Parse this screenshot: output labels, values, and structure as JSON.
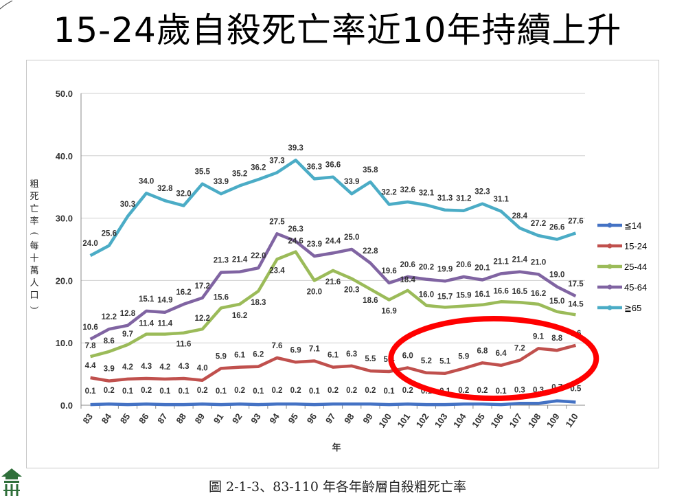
{
  "title": "15-24歲自殺死亡率近10年持續上升",
  "caption": "圖 2-1-3、83-110 年各年齡層自殺粗死亡率",
  "chart_data": {
    "type": "line",
    "xlabel": "年",
    "ylabel": "粗死亡率(每十萬人口)",
    "ylim": [
      0,
      50
    ],
    "yticks": [
      "0.0",
      "10.0",
      "20.0",
      "30.0",
      "40.0",
      "50.0"
    ],
    "grid": true,
    "legend_position": "right",
    "categories": [
      "83",
      "84",
      "85",
      "86",
      "87",
      "88",
      "89",
      "91",
      "92",
      "93",
      "94",
      "95",
      "96",
      "97",
      "98",
      "99",
      "100",
      "101",
      "102",
      "103",
      "104",
      "105",
      "106",
      "107",
      "108",
      "109",
      "110"
    ],
    "series": [
      {
        "name": "≦14",
        "color": "#4472C4",
        "values": [
          0.1,
          0.2,
          0.1,
          0.2,
          0.1,
          0.1,
          0.2,
          0.1,
          0.2,
          0.1,
          0.2,
          0.2,
          0.1,
          0.2,
          0.2,
          0.2,
          0.1,
          0.2,
          0.1,
          0.1,
          0.2,
          0.2,
          0.1,
          0.3,
          0.3,
          0.7,
          0.5
        ],
        "labels": [
          "0.1",
          "0.2",
          "0.1",
          "0.2",
          "0.1",
          "0.1",
          "0.2",
          "0.1",
          "0.2",
          "0.1",
          "0.2",
          "0.2",
          "0.1",
          "0.2",
          "0.2",
          "0.2",
          "0.1",
          "0.2",
          "0.1",
          "0.1",
          "0.2",
          "0.2",
          "0.1",
          "0.3",
          "0.3",
          "0.7",
          "0.5"
        ]
      },
      {
        "name": "15-24",
        "color": "#C0504D",
        "values": [
          4.4,
          3.9,
          4.2,
          4.3,
          4.2,
          4.3,
          4.0,
          5.9,
          6.1,
          6.2,
          7.6,
          6.9,
          7.1,
          6.1,
          6.3,
          5.5,
          5.4,
          6.0,
          5.2,
          5.1,
          5.9,
          6.8,
          6.4,
          7.2,
          9.1,
          8.8,
          9.6
        ],
        "labels": [
          "4.4",
          "3.9",
          "4.2",
          "4.3",
          "4.2",
          "4.3",
          "4.0",
          "5.9",
          "6.1",
          "6.2",
          "7.6",
          "6.9",
          "7.1",
          "6.1",
          "6.3",
          "5.5",
          "5.4",
          "6.0",
          "5.2",
          "5.1",
          "5.9",
          "6.8",
          "6.4",
          "7.2",
          "9.1",
          "8.8",
          "9.6"
        ]
      },
      {
        "name": "25-44",
        "color": "#9BBB59",
        "values": [
          7.8,
          8.6,
          9.7,
          11.4,
          11.4,
          11.6,
          12.2,
          15.6,
          16.2,
          18.3,
          23.4,
          24.6,
          20.0,
          21.6,
          20.3,
          18.6,
          16.9,
          18.4,
          16.0,
          15.7,
          15.9,
          16.1,
          16.6,
          16.5,
          16.2,
          15.0,
          14.5
        ],
        "labels": [
          "7.8",
          "8.6",
          "9.7",
          "11.4",
          "11.4",
          "11.6",
          "12.2",
          "15.6",
          "16.2",
          "18.3",
          "23.4",
          "24.6",
          "20.0",
          "21.6",
          "20.3",
          "18.6",
          "16.9",
          "18.4",
          "16.0",
          "15.7",
          "15.9",
          "16.1",
          "16.6",
          "16.5",
          "16.2",
          "15.0",
          "14.5"
        ]
      },
      {
        "name": "45-64",
        "color": "#8064A2",
        "values": [
          10.6,
          12.2,
          12.8,
          15.1,
          14.9,
          16.2,
          17.2,
          21.3,
          21.4,
          22.0,
          27.5,
          26.3,
          23.9,
          24.4,
          25.0,
          22.8,
          19.6,
          20.6,
          20.2,
          19.9,
          20.6,
          20.1,
          21.1,
          21.4,
          21.0,
          19.0,
          17.5
        ],
        "labels": [
          "10.6",
          "12.2",
          "12.8",
          "15.1",
          "14.9",
          "16.2",
          "17.2",
          "21.3",
          "21.4",
          "22.0",
          "27.5",
          "26.3",
          "23.9",
          "24.4",
          "25.0",
          "22.8",
          "19.6",
          "20.6",
          "20.2",
          "19.9",
          "20.6",
          "20.1",
          "21.1",
          "21.4",
          "21.0",
          "19.0",
          "17.5"
        ]
      },
      {
        "name": "≧65",
        "color": "#4BACC6",
        "values": [
          24.0,
          25.6,
          30.3,
          34.0,
          32.8,
          32.0,
          35.5,
          33.9,
          35.2,
          36.2,
          37.3,
          39.3,
          36.3,
          36.6,
          33.9,
          35.8,
          32.2,
          32.6,
          32.1,
          31.3,
          31.2,
          32.3,
          31.1,
          28.4,
          27.2,
          26.6,
          27.6
        ],
        "labels": [
          "24.0",
          "25.6",
          "30.3",
          "34.0",
          "32.8",
          "32.0",
          "35.5",
          "33.9",
          "35.2",
          "36.2",
          "37.3",
          "39.3",
          "36.3",
          "36.6",
          "33.9",
          "35.8",
          "32.2",
          "32.6",
          "32.1",
          "31.3",
          "31.2",
          "32.3",
          "31.1",
          "28.4",
          "27.2",
          "26.6",
          "27.6"
        ]
      }
    ],
    "annotation": {
      "shape": "ellipse",
      "color": "#FF0000",
      "from_category": "101",
      "to_category": "110"
    }
  }
}
